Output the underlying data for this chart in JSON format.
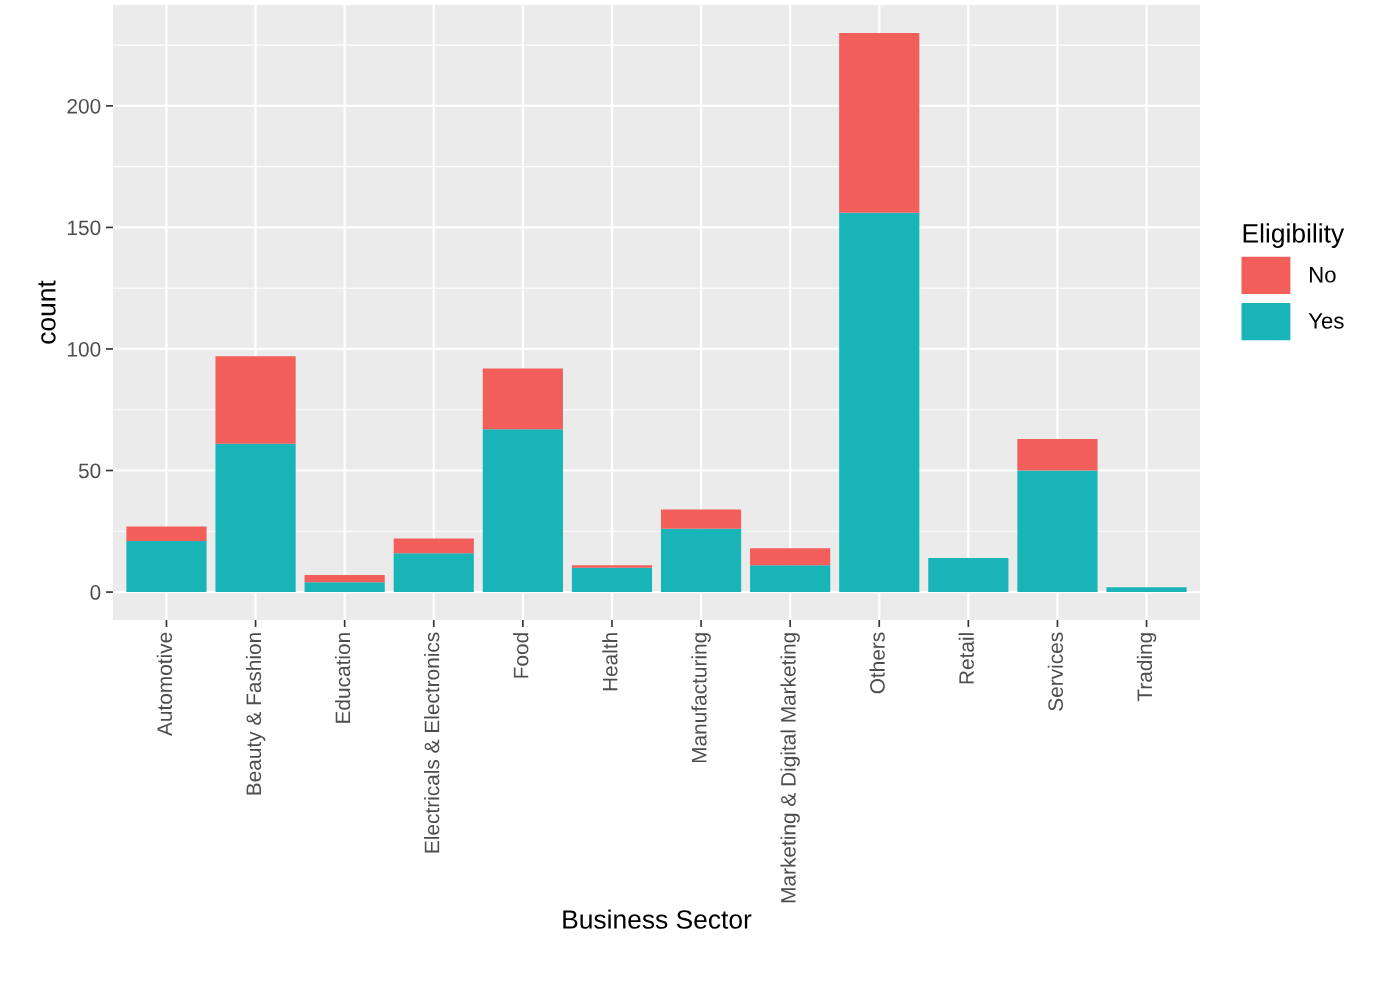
{
  "chart_data": {
    "type": "bar",
    "stacked": true,
    "xlabel": "Business Sector",
    "ylabel": "count",
    "legend_title": "Eligibility",
    "legend": "right",
    "grid": true,
    "categories": [
      "Automotive",
      "Beauty & Fashion",
      "Education",
      "Electricals & Electronics",
      "Food",
      "Health",
      "Manufacturing",
      "Marketing & Digital Marketing",
      "Others",
      "Retail",
      "Services",
      "Trading"
    ],
    "series": [
      {
        "name": "Yes",
        "color": "#19b4b8",
        "values": [
          21,
          61,
          4,
          16,
          67,
          10,
          26,
          11,
          156,
          14,
          50,
          2
        ]
      },
      {
        "name": "No",
        "color": "#f25f5a",
        "values": [
          6,
          36,
          3,
          6,
          25,
          1,
          8,
          7,
          74,
          0,
          13,
          0
        ]
      }
    ],
    "ylim": [
      -11.5,
      241.5
    ],
    "yticks": [
      0,
      50,
      100,
      150,
      200
    ]
  }
}
